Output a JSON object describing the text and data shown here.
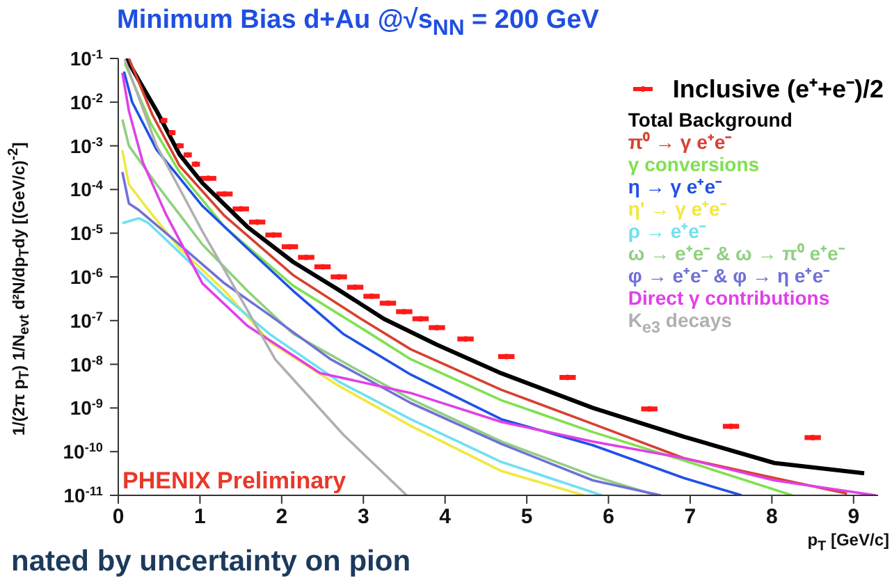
{
  "chart_data": {
    "type": "line",
    "title": "Minimum Bias d+Au @√s$_{NN}$ = 200 GeV",
    "xlabel": "p$_{T}$ [GeV/c]",
    "ylabel": "1/(2π p$_{T}$) 1/N$_{evt}$ d²N/dp$_{T}$dy [(GeV/c)$^{-2}$]",
    "annotations": [
      "PHENIX Preliminary",
      "nated by uncertainty on pion"
    ],
    "log": "y",
    "legend": "top right",
    "xlim": [
      0,
      9.3
    ],
    "xticks": [
      0,
      1,
      2,
      3,
      4,
      5,
      6,
      7,
      8,
      9
    ],
    "ylim": [
      1e-11,
      0.1
    ],
    "yticks": [
      {
        "value": 0.1,
        "label": "10$^{-1}$"
      },
      {
        "value": 0.01,
        "label": "10$^{-2}$"
      },
      {
        "value": 0.001,
        "label": "10$^{-3}$"
      },
      {
        "value": 0.0001,
        "label": "10$^{-4}$"
      },
      {
        "value": 1e-05,
        "label": "10$^{-5}$"
      },
      {
        "value": 1e-06,
        "label": "10$^{-6}$"
      },
      {
        "value": 1e-07,
        "label": "10$^{-7}$"
      },
      {
        "value": 1e-08,
        "label": "10$^{-8}$"
      },
      {
        "value": 1e-09,
        "label": "10$^{-9}$"
      },
      {
        "value": 1e-10,
        "label": "10$^{-10}$"
      },
      {
        "value": 1e-11,
        "label": "10$^{-11}$"
      }
    ],
    "series": [
      {
        "name": "Inclusive (e⁺+e⁻)/2",
        "type": "scatter",
        "color": "#ff1a1a",
        "x": [
          0.55,
          0.65,
          0.75,
          0.85,
          0.95,
          1.1,
          1.3,
          1.5,
          1.7,
          1.9,
          2.1,
          2.3,
          2.5,
          2.7,
          2.9,
          3.1,
          3.3,
          3.5,
          3.7,
          3.9,
          4.25,
          4.75,
          5.5,
          6.5,
          7.5,
          8.5
        ],
        "values": [
          0.0038,
          0.002,
          0.001,
          0.00062,
          0.00038,
          0.00018,
          7.9e-05,
          3.6e-05,
          1.8e-05,
          9.1e-06,
          4.9e-06,
          2.8e-06,
          1.7e-06,
          1e-06,
          5.8e-07,
          3.6e-07,
          2.5e-07,
          1.6e-07,
          1.1e-07,
          6.9e-08,
          3.8e-08,
          1.5e-08,
          5e-09,
          9.5e-10,
          3.8e-10,
          2.1e-10
        ],
        "xerrors": [
          0.05,
          0.05,
          0.05,
          0.05,
          0.05,
          0.1,
          0.1,
          0.1,
          0.1,
          0.1,
          0.1,
          0.1,
          0.1,
          0.1,
          0.1,
          0.1,
          0.1,
          0.1,
          0.1,
          0.1,
          0.1,
          0.1,
          0.1,
          0.1,
          0.1,
          0.1
        ]
      },
      {
        "name": "Total Background",
        "color": "#000000",
        "x": [
          0.1,
          0.25,
          0.47,
          0.75,
          1.03,
          1.58,
          2.14,
          2.7,
          3.25,
          3.9,
          4.69,
          5.81,
          6.92,
          8.03,
          9.13
        ],
        "values": [
          0.1,
          0.032,
          0.0063,
          0.00063,
          0.00014,
          1.4e-05,
          2.2e-06,
          5e-07,
          1.1e-07,
          2.8e-08,
          6.2e-09,
          1e-09,
          2.2e-10,
          5.5e-11,
          3.2e-11
        ]
      },
      {
        "name": "π⁰ → γ e⁺e⁻",
        "color": "#d84030",
        "x": [
          0.13,
          0.42,
          0.75,
          1.3,
          2.14,
          2.97,
          3.58,
          4.69,
          5.81,
          6.92,
          8.03,
          8.92
        ],
        "values": [
          0.1,
          0.005,
          0.00035,
          2.5e-05,
          1.1e-06,
          1.1e-07,
          2.2e-08,
          2.6e-09,
          4.3e-10,
          7.1e-11,
          2.5e-11,
          1.1e-11
        ]
      },
      {
        "name": "γ conversions",
        "color": "#80e050",
        "x": [
          0.08,
          0.4,
          0.75,
          1.3,
          2.14,
          3.0,
          3.58,
          4.69,
          5.81,
          6.92,
          8.25
        ],
        "values": [
          0.079,
          0.0032,
          0.00025,
          1.4e-05,
          6.3e-07,
          6.3e-08,
          1.3e-08,
          1.5e-09,
          2.8e-10,
          6.3e-11,
          1e-11
        ]
      },
      {
        "name": "η → γ e⁺e⁻",
        "color": "#2050e8",
        "x": [
          0.07,
          0.17,
          0.47,
          1.03,
          1.58,
          2.14,
          2.75,
          3.58,
          4.69,
          5.81,
          6.92,
          7.63
        ],
        "values": [
          0.05,
          0.01,
          0.00081,
          4.2e-05,
          4.5e-06,
          4.8e-07,
          5e-08,
          5.8e-09,
          5.5e-10,
          1.4e-10,
          2.5e-11,
          1e-11
        ]
      },
      {
        "name": "η' → γ e⁺e⁻",
        "color": "#f0e840",
        "x": [
          0.05,
          0.13,
          0.37,
          0.75,
          1.3,
          1.86,
          2.7,
          3.58,
          4.69,
          5.7
        ],
        "values": [
          0.00079,
          0.00013,
          3.4e-05,
          4.5e-06,
          4.8e-07,
          3.2e-08,
          3.2e-09,
          3.9e-10,
          3.6e-11,
          1e-11
        ]
      },
      {
        "name": "ρ → e⁺e⁻",
        "color": "#70e0f0",
        "x": [
          0.05,
          0.25,
          0.37,
          0.75,
          1.3,
          1.86,
          2.7,
          3.58,
          4.69,
          5.92
        ],
        "values": [
          1.7e-05,
          2.2e-05,
          1.7e-05,
          3.6e-06,
          3.6e-07,
          4.8e-08,
          4e-09,
          5.5e-10,
          5.8e-11,
          1e-11
        ]
      },
      {
        "name": "ω → e⁺e⁻ & ω → π⁰ e⁺e⁻",
        "color": "#90d080",
        "x": [
          0.05,
          0.13,
          0.47,
          1.03,
          1.58,
          2.14,
          2.9,
          3.58,
          4.69,
          5.81,
          6.58
        ],
        "values": [
          0.004,
          0.001,
          0.00013,
          5.5e-06,
          4.8e-07,
          5e-08,
          7.9e-09,
          1.6e-09,
          1.7e-10,
          2.8e-11,
          1e-11
        ]
      },
      {
        "name": "φ → e⁺e⁻ & φ → η e⁺e⁻",
        "color": "#7070d8",
        "x": [
          0.05,
          0.13,
          0.25,
          0.75,
          1.3,
          1.86,
          2.6,
          3.58,
          4.69,
          5.81,
          6.64
        ],
        "values": [
          0.00025,
          4.8e-05,
          3.4e-05,
          5.5e-06,
          7.1e-07,
          1.3e-07,
          1.3e-08,
          1.3e-09,
          1.5e-10,
          2.2e-11,
          1e-11
        ]
      },
      {
        "name": "Direct γ contributions",
        "color": "#e040e8",
        "x": [
          0.05,
          0.13,
          0.3,
          0.58,
          1.03,
          1.58,
          2.47,
          3.58,
          4.69,
          5.81,
          6.92,
          8.03,
          9.27
        ],
        "values": [
          0.047,
          0.0063,
          0.00042,
          2.8e-05,
          7.1e-07,
          7.6e-08,
          6.3e-09,
          2.2e-09,
          4.8e-10,
          1.7e-10,
          7.1e-11,
          2.2e-11,
          1e-11
        ]
      },
      {
        "name": "K$_{e3}$ decays",
        "color": "#b0b0b0",
        "x": [
          0.08,
          0.47,
          1.03,
          1.5,
          1.92,
          2.75,
          3.53
        ],
        "values": [
          0.093,
          0.001,
          1.1e-05,
          3.2e-07,
          1.3e-08,
          2.5e-10,
          1e-11
        ]
      }
    ]
  }
}
